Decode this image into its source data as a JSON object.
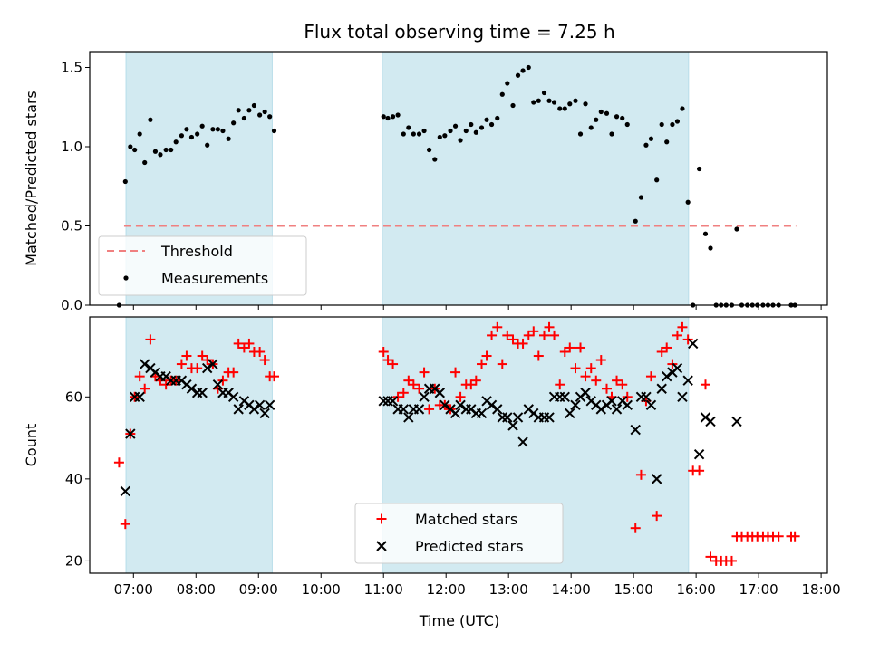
{
  "chart_data": {
    "title": "Flux total observing time = 7.25 h",
    "xlabel": "Time (UTC)",
    "xticks": [
      "07:00",
      "08:00",
      "09:00",
      "10:00",
      "11:00",
      "12:00",
      "13:00",
      "14:00",
      "15:00",
      "16:00",
      "17:00",
      "18:00"
    ],
    "xlim_hours": [
      6.3,
      18.1
    ],
    "shaded_intervals_hours": [
      [
        6.88,
        9.22
      ],
      [
        10.98,
        15.88
      ]
    ],
    "colors": {
      "shade": "#add8e6",
      "threshold": "#f08080",
      "measurement": "#000000",
      "matched": "#ff0000",
      "predicted": "#000000"
    },
    "panels": [
      {
        "type": "scatter",
        "ylabel": "Matched/Predicted stars",
        "ylim": [
          0,
          1.6
        ],
        "yticks": [
          "0.0",
          "0.5",
          "1.0",
          "1.5"
        ],
        "ytick_values": [
          0,
          0.5,
          1.0,
          1.5
        ],
        "legend_position": "lower-left",
        "threshold": {
          "name": "Threshold",
          "y": 0.5,
          "x_range_hours": [
            6.85,
            17.6
          ]
        },
        "series": [
          {
            "name": "Measurements",
            "marker": "dot",
            "x_hours": [
              6.77,
              6.87,
              6.95,
              7.02,
              7.1,
              7.18,
              7.27,
              7.35,
              7.43,
              7.52,
              7.6,
              7.68,
              7.77,
              7.85,
              7.93,
              8.02,
              8.1,
              8.18,
              8.27,
              8.35,
              8.43,
              8.52,
              8.6,
              8.68,
              8.77,
              8.85,
              8.93,
              9.02,
              9.1,
              9.18,
              9.25,
              11.0,
              11.07,
              11.15,
              11.23,
              11.32,
              11.4,
              11.48,
              11.57,
              11.65,
              11.73,
              11.82,
              11.9,
              11.98,
              12.07,
              12.15,
              12.23,
              12.32,
              12.4,
              12.48,
              12.57,
              12.65,
              12.73,
              12.82,
              12.9,
              12.98,
              13.07,
              13.15,
              13.23,
              13.32,
              13.4,
              13.48,
              13.57,
              13.65,
              13.73,
              13.82,
              13.9,
              13.98,
              14.07,
              14.15,
              14.23,
              14.32,
              14.4,
              14.48,
              14.57,
              14.65,
              14.73,
              14.82,
              14.9,
              15.03,
              15.12,
              15.2,
              15.28,
              15.37,
              15.45,
              15.53,
              15.62,
              15.7,
              15.78,
              15.87,
              15.95,
              16.05,
              16.15,
              16.23,
              16.32,
              16.4,
              16.48,
              16.57,
              16.65,
              16.73,
              16.82,
              16.9,
              16.98,
              17.07,
              17.15,
              17.23,
              17.32,
              17.52,
              17.58
            ],
            "y": [
              0.0,
              0.78,
              1.0,
              0.98,
              1.08,
              0.9,
              1.17,
              0.97,
              0.95,
              0.98,
              0.98,
              1.03,
              1.07,
              1.11,
              1.06,
              1.08,
              1.13,
              1.01,
              1.11,
              1.11,
              1.1,
              1.05,
              1.15,
              1.23,
              1.18,
              1.23,
              1.26,
              1.2,
              1.22,
              1.19,
              1.1,
              1.19,
              1.18,
              1.19,
              1.2,
              1.08,
              1.12,
              1.08,
              1.08,
              1.1,
              0.98,
              0.92,
              1.06,
              1.07,
              1.1,
              1.13,
              1.04,
              1.1,
              1.14,
              1.09,
              1.12,
              1.17,
              1.14,
              1.18,
              1.33,
              1.4,
              1.26,
              1.45,
              1.48,
              1.5,
              1.28,
              1.29,
              1.34,
              1.29,
              1.28,
              1.24,
              1.24,
              1.27,
              1.29,
              1.08,
              1.27,
              1.12,
              1.17,
              1.22,
              1.21,
              1.08,
              1.19,
              1.18,
              1.14,
              0.53,
              0.68,
              1.01,
              1.05,
              0.79,
              1.14,
              1.03,
              1.14,
              1.16,
              1.24,
              0.65,
              0.0,
              0.86,
              0.45,
              0.36,
              0.0,
              0.0,
              0.0,
              0.0,
              0.48,
              0.0,
              0.0,
              0.0,
              0.0,
              0.0,
              0.0,
              0.0,
              0.0,
              0.0,
              0.0
            ]
          }
        ]
      },
      {
        "type": "scatter",
        "ylabel": "Count",
        "ylim": [
          17,
          79.5
        ],
        "yticks": [
          "20",
          "40",
          "60"
        ],
        "ytick_values": [
          20,
          40,
          60
        ],
        "legend_position": "lower-center",
        "series": [
          {
            "name": "Matched stars",
            "marker": "plus",
            "x_hours": [
              6.77,
              6.87,
              6.95,
              7.02,
              7.1,
              7.18,
              7.27,
              7.35,
              7.43,
              7.52,
              7.6,
              7.68,
              7.77,
              7.85,
              7.93,
              8.02,
              8.1,
              8.18,
              8.27,
              8.35,
              8.43,
              8.52,
              8.6,
              8.68,
              8.77,
              8.85,
              8.93,
              9.02,
              9.1,
              9.18,
              9.25,
              11.0,
              11.07,
              11.15,
              11.23,
              11.32,
              11.4,
              11.48,
              11.57,
              11.65,
              11.73,
              11.82,
              11.9,
              11.98,
              12.07,
              12.15,
              12.23,
              12.32,
              12.4,
              12.48,
              12.57,
              12.65,
              12.73,
              12.82,
              12.9,
              12.98,
              13.07,
              13.15,
              13.23,
              13.32,
              13.4,
              13.48,
              13.57,
              13.65,
              13.73,
              13.82,
              13.9,
              13.98,
              14.07,
              14.15,
              14.23,
              14.32,
              14.4,
              14.48,
              14.57,
              14.65,
              14.73,
              14.82,
              14.9,
              15.03,
              15.12,
              15.2,
              15.28,
              15.37,
              15.45,
              15.53,
              15.62,
              15.7,
              15.78,
              15.87,
              15.95,
              16.05,
              16.15,
              16.23,
              16.32,
              16.4,
              16.48,
              16.57,
              16.65,
              16.73,
              16.82,
              16.9,
              16.98,
              17.07,
              17.15,
              17.23,
              17.32,
              17.52,
              17.58
            ],
            "y": [
              44,
              29,
              51,
              60,
              65,
              62,
              74,
              65,
              64,
              63,
              64,
              64,
              68,
              70,
              67,
              67,
              70,
              69,
              68,
              62,
              64,
              66,
              66,
              73,
              72,
              73,
              71,
              71,
              69,
              65,
              65,
              71,
              69,
              68,
              60,
              61,
              64,
              63,
              62,
              66,
              57,
              62,
              58,
              58,
              57,
              66,
              60,
              63,
              63,
              64,
              68,
              70,
              75,
              77,
              68,
              75,
              74,
              73,
              73,
              75,
              76,
              70,
              75,
              77,
              75,
              63,
              71,
              72,
              67,
              72,
              65,
              67,
              64,
              69,
              62,
              60,
              64,
              63,
              60,
              28,
              41,
              59,
              65,
              31,
              71,
              72,
              68,
              75,
              77,
              74,
              42,
              42,
              63,
              21,
              20,
              20,
              20,
              20,
              26,
              26,
              26,
              26,
              26,
              26,
              26,
              26,
              26,
              26,
              26
            ]
          },
          {
            "name": "Predicted stars",
            "marker": "x",
            "x_hours": [
              6.87,
              6.95,
              7.02,
              7.1,
              7.18,
              7.27,
              7.35,
              7.43,
              7.52,
              7.6,
              7.68,
              7.77,
              7.85,
              7.93,
              8.02,
              8.1,
              8.18,
              8.27,
              8.35,
              8.43,
              8.52,
              8.6,
              8.68,
              8.77,
              8.85,
              8.93,
              9.02,
              9.1,
              9.18,
              11.0,
              11.07,
              11.15,
              11.23,
              11.32,
              11.4,
              11.48,
              11.57,
              11.65,
              11.73,
              11.82,
              11.9,
              11.98,
              12.07,
              12.15,
              12.23,
              12.32,
              12.4,
              12.48,
              12.57,
              12.65,
              12.73,
              12.82,
              12.9,
              12.98,
              13.07,
              13.15,
              13.23,
              13.32,
              13.4,
              13.48,
              13.57,
              13.65,
              13.73,
              13.82,
              13.9,
              13.98,
              14.07,
              14.15,
              14.23,
              14.32,
              14.4,
              14.48,
              14.57,
              14.65,
              14.73,
              14.82,
              14.9,
              15.03,
              15.12,
              15.2,
              15.28,
              15.37,
              15.45,
              15.53,
              15.62,
              15.7,
              15.78,
              15.87,
              15.95,
              16.05,
              16.15,
              16.23,
              16.65
            ],
            "y": [
              37,
              51,
              60,
              60,
              68,
              67,
              66,
              65,
              65,
              64,
              64,
              64,
              63,
              62,
              61,
              61,
              67,
              68,
              63,
              61,
              61,
              60,
              57,
              59,
              58,
              57,
              58,
              56,
              58,
              59,
              59,
              59,
              57,
              57,
              55,
              57,
              57,
              60,
              62,
              62,
              61,
              58,
              57,
              56,
              58,
              57,
              57,
              56,
              56,
              59,
              58,
              57,
              55,
              55,
              53,
              55,
              49,
              57,
              56,
              55,
              55,
              55,
              60,
              60,
              60,
              56,
              58,
              60,
              61,
              59,
              58,
              57,
              58,
              59,
              57,
              59,
              58,
              52,
              60,
              60,
              58,
              40,
              62,
              65,
              66,
              67,
              60,
              64,
              73,
              46,
              55,
              54,
              54
            ]
          }
        ]
      }
    ]
  }
}
